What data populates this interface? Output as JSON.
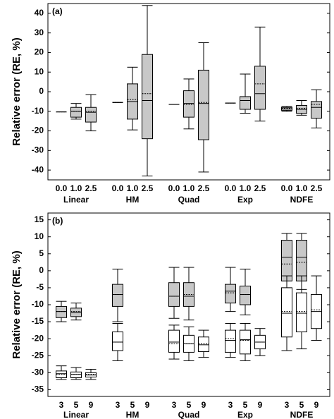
{
  "chart_data": [
    {
      "type": "box",
      "label": "(a)",
      "ylabel": "Relative error (RE, %)",
      "groups": [
        "Linear",
        "HM",
        "Quad",
        "Exp",
        "NDFE"
      ],
      "subcategories": [
        "0.0",
        "1.0",
        "2.5"
      ],
      "ylim": [
        -45,
        45
      ],
      "yticks": [
        40,
        30,
        20,
        10,
        0,
        -10,
        -20,
        -30,
        -40
      ],
      "series": [
        {
          "color": "#c8c8c8",
          "boxes": [
            {
              "min": -10.3,
              "q1": -10.3,
              "median": -10.3,
              "q3": -10.3,
              "max": -10.3,
              "mean": -10.3
            },
            {
              "min": -14,
              "q1": -13,
              "median": -10,
              "q3": -8,
              "max": -6,
              "mean": -10
            },
            {
              "min": -20,
              "q1": -15.5,
              "median": -10.5,
              "q3": -8,
              "max": -1.5,
              "mean": -10
            },
            {
              "min": -5.5,
              "q1": -5.5,
              "median": -5.5,
              "q3": -5.5,
              "max": -5.5,
              "mean": -5.5
            },
            {
              "min": -19.5,
              "q1": -14,
              "median": -5,
              "q3": 4,
              "max": 12.5,
              "mean": -4
            },
            {
              "min": -43,
              "q1": -24,
              "median": -4.5,
              "q3": 19,
              "max": 44,
              "mean": -1
            },
            {
              "min": -6.5,
              "q1": -6.5,
              "median": -6.5,
              "q3": -6.5,
              "max": -6.5,
              "mean": -6.5
            },
            {
              "min": -19,
              "q1": -13,
              "median": -6,
              "q3": 0.5,
              "max": 6.5,
              "mean": -6.5
            },
            {
              "min": -41,
              "q1": -24.5,
              "median": -6,
              "q3": 11,
              "max": 25,
              "mean": -5.5
            },
            {
              "min": -5.8,
              "q1": -5.8,
              "median": -5.8,
              "q3": -5.8,
              "max": -5.8,
              "mean": -5.8
            },
            {
              "min": -11,
              "q1": -9,
              "median": -4.5,
              "q3": -2.5,
              "max": 9,
              "mean": -2.5
            },
            {
              "min": -15,
              "q1": -9,
              "median": -1,
              "q3": 13,
              "max": 33,
              "mean": 4
            },
            {
              "min": -10,
              "q1": -9.5,
              "median": -8.8,
              "q3": -8,
              "max": -7.5,
              "mean": -8.5
            },
            {
              "min": -12,
              "q1": -11,
              "median": -9,
              "q3": -7,
              "max": -4.5,
              "mean": -8.5
            },
            {
              "min": -18.5,
              "q1": -13.5,
              "median": -8,
              "q3": -5,
              "max": 1,
              "mean": -6.5
            }
          ]
        }
      ]
    },
    {
      "type": "box",
      "label": "(b)",
      "ylabel": "Relative error (RE, %)",
      "groups": [
        "Linear",
        "HM",
        "Quad",
        "Exp",
        "NDFE"
      ],
      "subcategories": [
        "3",
        "5",
        "9"
      ],
      "ylim": [
        -37,
        17
      ],
      "yticks": [
        15,
        10,
        5,
        0,
        -5,
        -10,
        -15,
        -20,
        -25,
        -30,
        -35
      ],
      "series": [
        {
          "color": "#c8c8c8",
          "boxes": [
            {
              "min": -15,
              "q1": -13.8,
              "median": -12,
              "q3": -10.5,
              "max": -9,
              "mean": -12
            },
            {
              "min": -14.5,
              "q1": -13.5,
              "median": -12.3,
              "q3": -11,
              "max": -9.5,
              "mean": -12
            },
            null,
            {
              "min": -15,
              "q1": -10.5,
              "median": -7,
              "q3": -4,
              "max": 0.5,
              "mean": -7
            },
            null,
            null,
            {
              "min": -14,
              "q1": -10.5,
              "median": -7.5,
              "q3": -3.5,
              "max": 1,
              "mean": -7.5
            },
            {
              "min": -14.5,
              "q1": -10.5,
              "median": -7.5,
              "q3": -3.5,
              "max": 1,
              "mean": -7
            },
            null,
            {
              "min": -12,
              "q1": -9.5,
              "median": -6,
              "q3": -4,
              "max": 1,
              "mean": -6.5
            },
            {
              "min": -13,
              "q1": -10,
              "median": -7,
              "q3": -4.5,
              "max": 0.5,
              "mean": -7
            },
            null,
            {
              "min": -5,
              "q1": -3,
              "median": 4,
              "q3": 9,
              "max": 11,
              "mean": 2
            },
            {
              "min": -5.5,
              "q1": -3,
              "median": 4,
              "q3": 9,
              "max": 11,
              "mean": 2.5
            },
            null
          ]
        },
        {
          "color": "#ffffff",
          "boxes": [
            {
              "min": -32,
              "q1": -31.5,
              "median": -30.3,
              "q3": -29.5,
              "max": -28,
              "mean": -30.5
            },
            {
              "min": -32,
              "q1": -31.5,
              "median": -30.5,
              "q3": -29.8,
              "max": -28.5,
              "mean": -30.5
            },
            {
              "min": -32,
              "q1": -31.3,
              "median": -30.7,
              "q3": -30,
              "max": -29,
              "mean": -30.5
            },
            {
              "min": -26.5,
              "q1": -23.5,
              "median": -21,
              "q3": -18,
              "max": -15.5,
              "mean": -21
            },
            null,
            null,
            {
              "min": -26,
              "q1": -24,
              "median": -21,
              "q3": -17.5,
              "max": -16,
              "mean": -21.5
            },
            {
              "min": -26.5,
              "q1": -24,
              "median": -21.5,
              "q3": -19,
              "max": -16.5,
              "mean": -21.5
            },
            {
              "min": -25.5,
              "q1": -23.8,
              "median": -21.8,
              "q3": -19.5,
              "max": -17.5,
              "mean": -21.5
            },
            {
              "min": -25.5,
              "q1": -24,
              "median": -20.5,
              "q3": -17.5,
              "max": -15.5,
              "mean": -20
            },
            {
              "min": -26.5,
              "q1": -24.5,
              "median": -20.3,
              "q3": -17.5,
              "max": -15.5,
              "mean": -20.5
            },
            {
              "min": -25,
              "q1": -23,
              "median": -21,
              "q3": -19,
              "max": -17,
              "mean": -21
            },
            {
              "min": -23.5,
              "q1": -19.5,
              "median": -12.5,
              "q3": -5,
              "max": -1.5,
              "mean": -12
            },
            {
              "min": -23,
              "q1": -18,
              "median": -12.5,
              "q3": -6.5,
              "max": -1.5,
              "mean": -12
            },
            {
              "min": -20.5,
              "q1": -17,
              "median": -12,
              "q3": -7,
              "max": -1.5,
              "mean": -11.5
            }
          ]
        }
      ]
    }
  ]
}
